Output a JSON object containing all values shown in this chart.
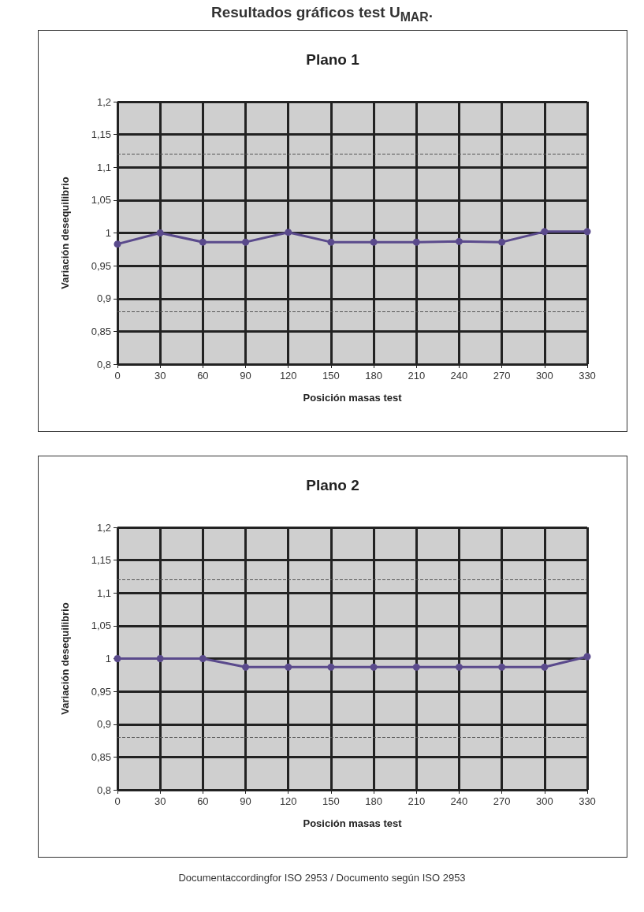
{
  "chart_data": [
    {
      "type": "line",
      "title": "Plano 1",
      "xlabel": "Posición masas test",
      "ylabel": "Variación desequilibrio",
      "annotations": [
        "Resultados gráficos test U$_{MAR}$."
      ],
      "categories": [
        "0",
        "30",
        "60",
        "90",
        "120",
        "150",
        "180",
        "210",
        "240",
        "270",
        "300",
        "330"
      ],
      "series": [
        {
          "color": "#5a4a8c",
          "values": [
            0.983,
            1.0,
            0.986,
            0.986,
            1.001,
            0.986,
            0.986,
            0.986,
            0.987,
            0.986,
            1.002,
            1.002
          ]
        }
      ],
      "ylim": [
        0.8,
        1.2
      ],
      "yticks": [
        {
          "value": 0.8,
          "label": "0,8"
        },
        {
          "value": 0.85,
          "label": "0,85"
        },
        {
          "value": 0.9,
          "label": "0,9"
        },
        {
          "value": 0.95,
          "label": "0,95"
        },
        {
          "value": 1,
          "label": "1"
        },
        {
          "value": 1.05,
          "label": "1,05"
        },
        {
          "value": 1.1,
          "label": "1,1"
        },
        {
          "value": 1.15,
          "label": "1,15"
        },
        {
          "value": 1.2,
          "label": "1,2"
        }
      ],
      "ref_lines": [
        {
          "axis": "y",
          "value": 1.12,
          "color": "#555555",
          "line_style": "dashed"
        },
        {
          "axis": "y",
          "value": 0.88,
          "color": "#555555",
          "line_style": "dashed"
        }
      ],
      "grid": true,
      "marker": "circle",
      "line_style": "solid"
    },
    {
      "type": "line",
      "title": "Plano 2",
      "xlabel": "Posición masas test",
      "ylabel": "Variación desequilibrio",
      "annotations": [
        "Documentaccordingfor ISO 2953 / Documento según ISO 2953"
      ],
      "categories": [
        "0",
        "30",
        "60",
        "90",
        "120",
        "150",
        "180",
        "210",
        "240",
        "270",
        "300",
        "330"
      ],
      "series": [
        {
          "color": "#5a4a8c",
          "values": [
            1.0,
            1.0,
            1.0,
            0.987,
            0.987,
            0.987,
            0.987,
            0.987,
            0.987,
            0.987,
            0.987,
            1.003
          ]
        }
      ],
      "ylim": [
        0.8,
        1.2
      ],
      "yticks": [
        {
          "value": 0.8,
          "label": "0,8"
        },
        {
          "value": 0.85,
          "label": "0,85"
        },
        {
          "value": 0.9,
          "label": "0,9"
        },
        {
          "value": 0.95,
          "label": "0,95"
        },
        {
          "value": 1,
          "label": "1"
        },
        {
          "value": 1.05,
          "label": "1,05"
        },
        {
          "value": 1.1,
          "label": "1,1"
        },
        {
          "value": 1.15,
          "label": "1,15"
        },
        {
          "value": 1.2,
          "label": "1,2"
        }
      ],
      "ref_lines": [
        {
          "axis": "y",
          "value": 1.12,
          "color": "#555555",
          "line_style": "dashed"
        },
        {
          "axis": "y",
          "value": 0.88,
          "color": "#555555",
          "line_style": "dashed"
        }
      ],
      "grid": true,
      "marker": "circle",
      "line_style": "solid"
    }
  ]
}
